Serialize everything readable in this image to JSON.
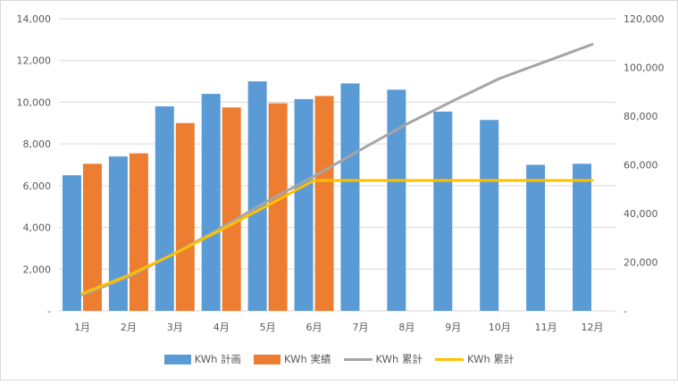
{
  "chart_data": {
    "type": "bar",
    "categories": [
      "1月",
      "2月",
      "3月",
      "4月",
      "5月",
      "6月",
      "7月",
      "8月",
      "9月",
      "10月",
      "11月",
      "12月"
    ],
    "series": [
      {
        "name": "KWh 計画",
        "type": "bar",
        "axis": "left",
        "color": "#5b9bd5",
        "values": [
          6500,
          7400,
          9800,
          10400,
          11000,
          10150,
          10900,
          10600,
          9550,
          9150,
          7000,
          7050
        ]
      },
      {
        "name": "KWh 実績",
        "type": "bar",
        "axis": "left",
        "color": "#ed7d31",
        "values": [
          7050,
          7550,
          9000,
          9750,
          9950,
          10300,
          null,
          null,
          null,
          null,
          null,
          null
        ]
      },
      {
        "name": "KWh 累計",
        "type": "line",
        "axis": "right",
        "color": "#a5a5a5",
        "values": [
          6500,
          13900,
          23700,
          34100,
          45100,
          55250,
          66150,
          76750,
          86300,
          95450,
          102450,
          109500
        ]
      },
      {
        "name": "KWh 累計",
        "type": "line",
        "axis": "right",
        "color": "#ffc000",
        "values": [
          7050,
          14600,
          23600,
          33350,
          43300,
          53600,
          53600,
          53600,
          53600,
          53600,
          53600,
          53600
        ]
      }
    ],
    "yticks_left": [
      "-",
      "2,000",
      "4,000",
      "6,000",
      "8,000",
      "10,000",
      "12,000",
      "14,000"
    ],
    "yticks_right": [
      "-",
      "20,000",
      "40,000",
      "60,000",
      "80,000",
      "100,000",
      "120,000"
    ],
    "ylim_left": [
      0,
      14000
    ],
    "ylim_right": [
      0,
      120000
    ],
    "grid": true,
    "legend_position": "bottom"
  }
}
